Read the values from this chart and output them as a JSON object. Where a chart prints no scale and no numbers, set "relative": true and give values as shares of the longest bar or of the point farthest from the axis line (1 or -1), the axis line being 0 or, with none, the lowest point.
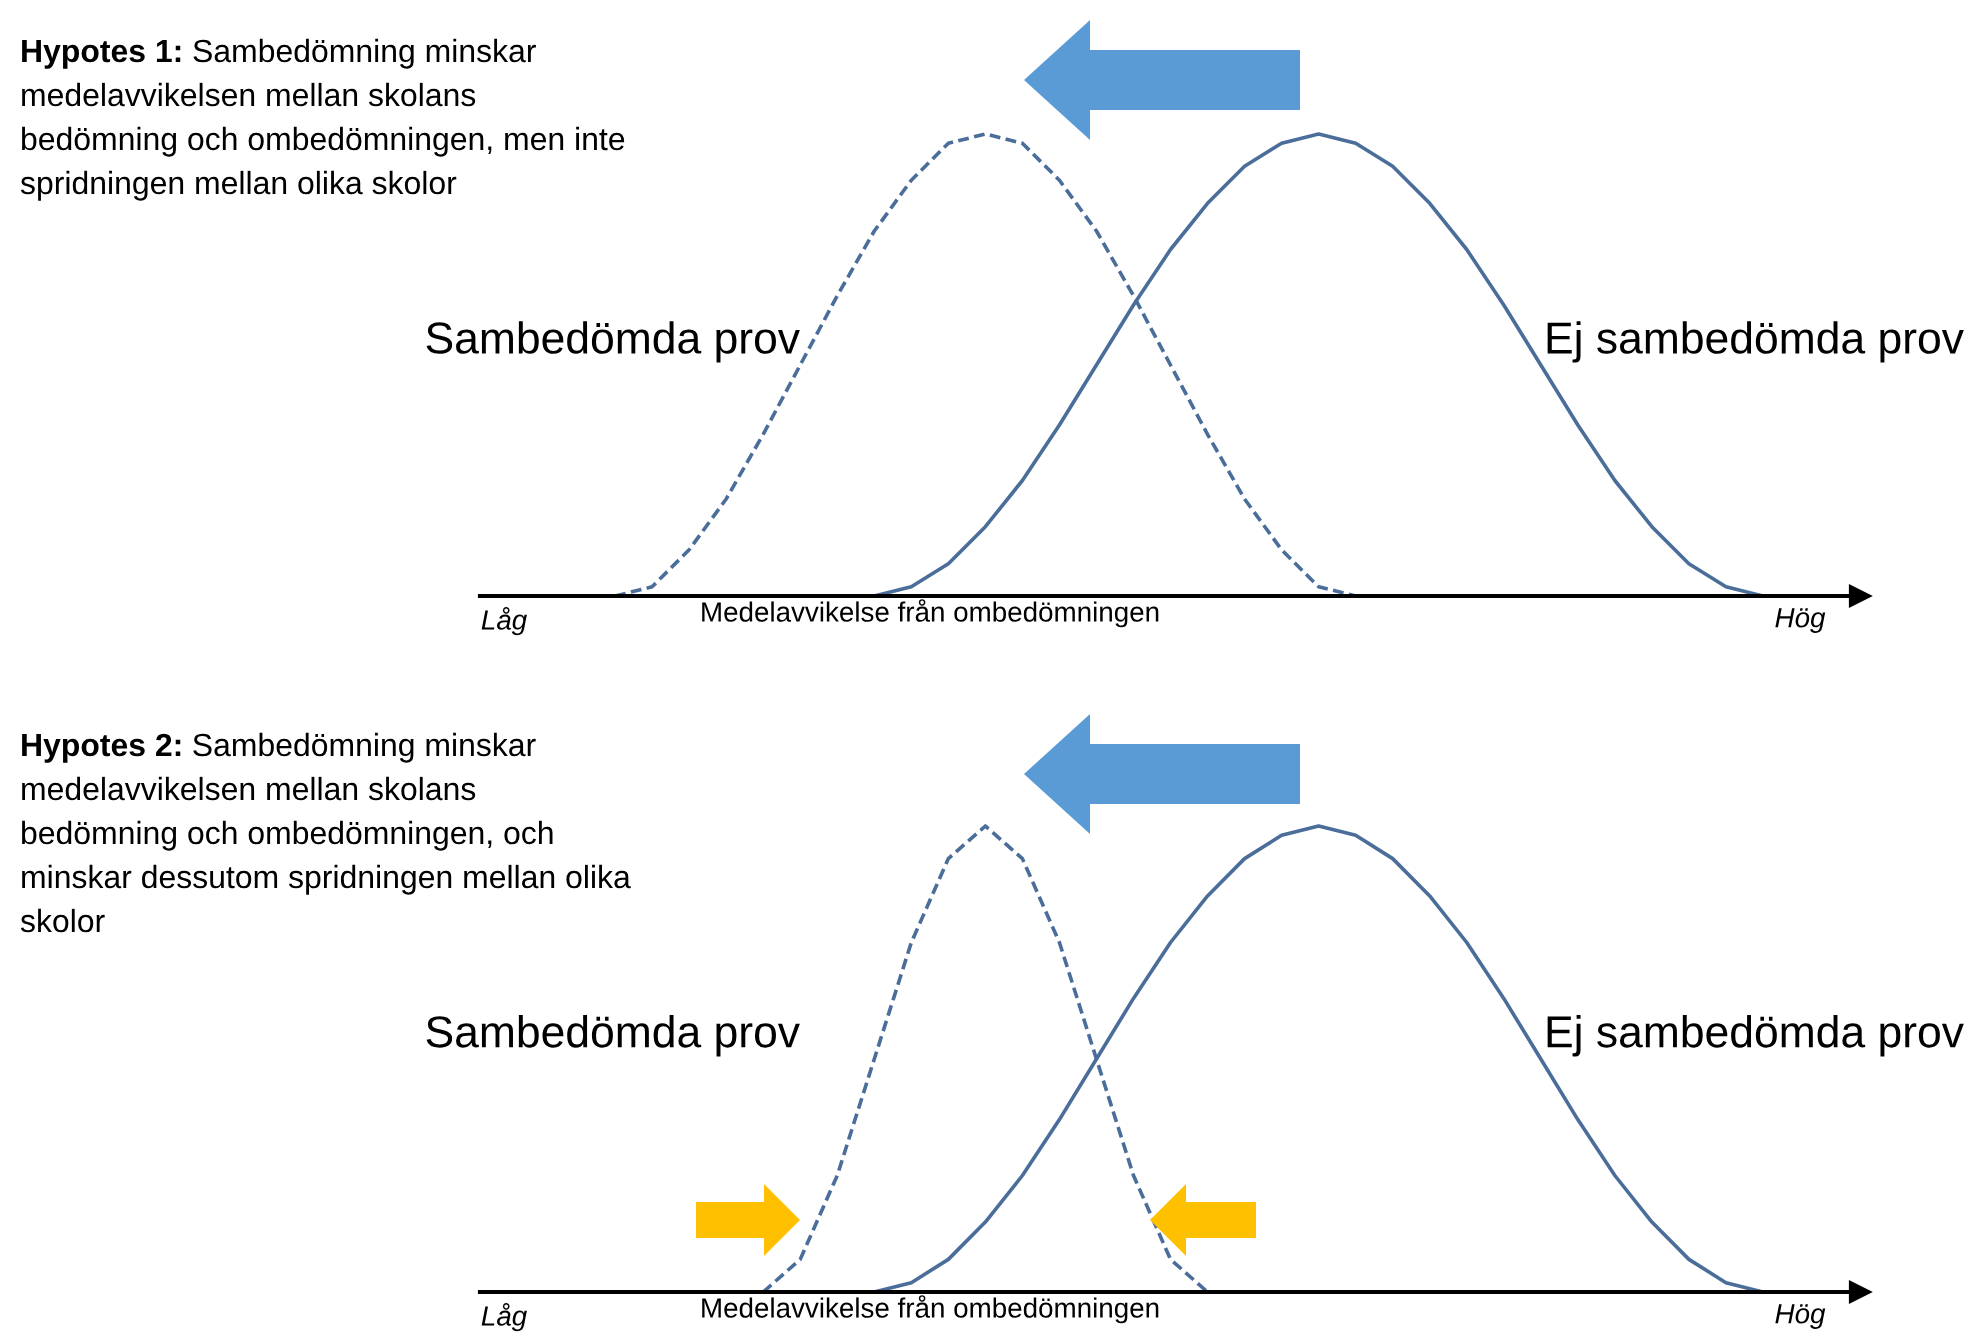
{
  "chart_data": [
    {
      "type": "line",
      "relative": true,
      "annotations": [
        "Hypotes 1:",
        "Sambedömning minskar medelavvikelsen mellan skolans bedömning och ombedömningen, men inte spridningen mellan olika skolor"
      ],
      "xlabel": "Medelavvikelse från ombedömningen",
      "categories": [
        "Låg",
        null,
        null,
        null,
        null,
        null,
        null,
        null,
        null,
        null,
        null,
        null,
        null,
        null,
        null,
        null,
        null,
        null,
        null,
        null,
        null,
        null,
        null,
        null,
        null,
        null,
        null,
        null,
        null,
        null,
        null,
        null,
        null,
        null,
        null,
        "Hög"
      ],
      "series": [
        {
          "name": "Sambedömda prov",
          "color": "#4a6d9a",
          "line_style": "dashed",
          "values": [
            null,
            null,
            null,
            0,
            0.02,
            0.1,
            0.21,
            0.35,
            0.5,
            0.65,
            0.79,
            0.9,
            0.98,
            1,
            0.98,
            0.9,
            0.79,
            0.65,
            0.5,
            0.35,
            0.21,
            0.1,
            0.02,
            0,
            null,
            null,
            null,
            null,
            null,
            null,
            null,
            null,
            null,
            null,
            null,
            null
          ]
        },
        {
          "name": "Ej sambedömda prov",
          "color": "#4a6d9a",
          "line_style": "solid",
          "values": [
            null,
            null,
            null,
            null,
            null,
            null,
            null,
            null,
            null,
            null,
            0,
            0.02,
            0.07,
            0.15,
            0.25,
            0.37,
            0.5,
            0.63,
            0.75,
            0.85,
            0.93,
            0.98,
            1,
            0.98,
            0.93,
            0.85,
            0.75,
            0.63,
            0.5,
            0.37,
            0.25,
            0.15,
            0.07,
            0.02,
            0,
            null
          ]
        }
      ]
    },
    {
      "type": "line",
      "relative": true,
      "annotations": [
        "Hypotes 2:",
        "Sambedömning minskar medelavvikelsen mellan skolans bedömning och ombedömningen, och minskar dessutom spridningen mellan olika skolor"
      ],
      "xlabel": "Medelavvikelse från ombedömningen",
      "categories": [
        "Låg",
        null,
        null,
        null,
        null,
        null,
        null,
        null,
        null,
        null,
        null,
        null,
        null,
        null,
        null,
        null,
        null,
        null,
        null,
        null,
        null,
        null,
        null,
        null,
        null,
        null,
        null,
        null,
        null,
        null,
        null,
        null,
        null,
        null,
        null,
        "Hög"
      ],
      "series": [
        {
          "name": "Sambedömda prov",
          "color": "#4a6d9a",
          "line_style": "dashed",
          "values": [
            null,
            null,
            null,
            null,
            null,
            null,
            null,
            0,
            0.07,
            0.25,
            0.5,
            0.75,
            0.93,
            1,
            0.93,
            0.75,
            0.5,
            0.25,
            0.07,
            0,
            null,
            null,
            null,
            null,
            null,
            null,
            null,
            null,
            null,
            null,
            null,
            null,
            null,
            null,
            null,
            null
          ]
        },
        {
          "name": "Ej sambedömda prov",
          "color": "#4a6d9a",
          "line_style": "solid",
          "values": [
            null,
            null,
            null,
            null,
            null,
            null,
            null,
            null,
            null,
            null,
            0,
            0.02,
            0.07,
            0.15,
            0.25,
            0.37,
            0.5,
            0.63,
            0.75,
            0.85,
            0.93,
            0.98,
            1,
            0.98,
            0.93,
            0.85,
            0.75,
            0.63,
            0.5,
            0.37,
            0.25,
            0.15,
            0.07,
            0.02,
            0,
            null
          ]
        }
      ]
    }
  ]
}
